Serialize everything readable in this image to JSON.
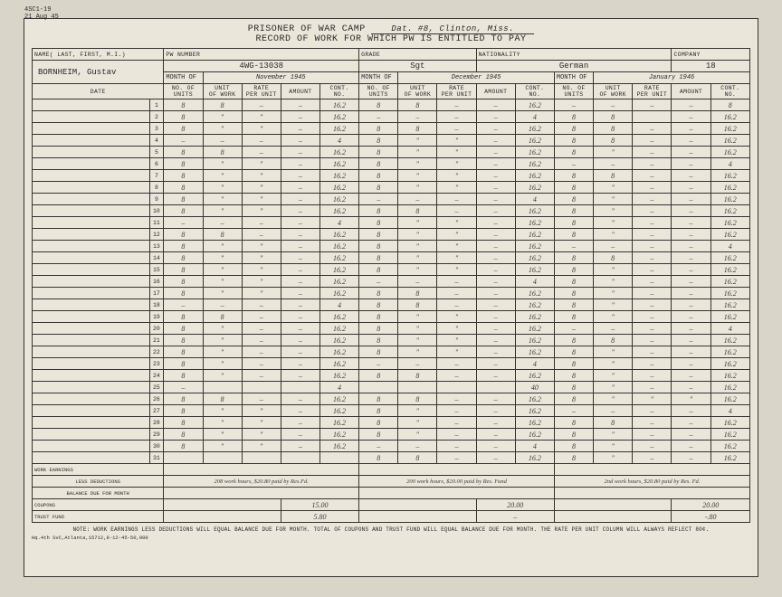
{
  "form_code": "4SC1-19",
  "form_date": "21 Aug 45",
  "title_line1": "PRISONER OF WAR CAMP",
  "camp_value": "Dat. #8, Clinton, Miss.",
  "title_line2": "RECORD OF WORK FOR WHICH PW IS ENTITLED TO PAY",
  "name_label": "NAME( LAST, FIRST, M.I.)",
  "name_value": "BORNHEIM, Gustav",
  "pw_label": "PW NUMBER",
  "pw_value": "4WG-13038",
  "grade_label": "GRADE",
  "grade_value": "Sgt",
  "nat_label": "NATIONALITY",
  "nat_value": "German",
  "co_label": "COMPANY",
  "co_value": "18",
  "date_label": "DATE",
  "month_label": "MONTH OF",
  "months": [
    "November 1945",
    "December 1945",
    "January 1946"
  ],
  "colheads": [
    "NO. OF\nUNITS",
    "UNIT\nOF WORK",
    "RATE\nPER UNIT",
    "AMOUNT",
    "CONT.\nNO."
  ],
  "rows": [
    {
      "d": 1,
      "m1": [
        "8",
        "8",
        "–",
        "–",
        "16.2"
      ],
      "m2": [
        "8",
        "8",
        "–",
        "–",
        "16.2"
      ],
      "m3": [
        "–",
        "–",
        "–",
        "–",
        "8"
      ]
    },
    {
      "d": 2,
      "m1": [
        "8",
        "\"",
        "\"",
        "–",
        "16.2"
      ],
      "m2": [
        "–",
        "–",
        "–",
        "–",
        "4"
      ],
      "m3": [
        "8",
        "8",
        "",
        "–",
        "16.2"
      ]
    },
    {
      "d": 3,
      "m1": [
        "8",
        "\"",
        "\"",
        "–",
        "16.2"
      ],
      "m2": [
        "8",
        "8",
        "–",
        "–",
        "16.2"
      ],
      "m3": [
        "8",
        "8",
        "–",
        "–",
        "16.2"
      ]
    },
    {
      "d": 4,
      "m1": [
        "–",
        "–",
        "–",
        "–",
        "4"
      ],
      "m2": [
        "8",
        "\"",
        "\"",
        "–",
        "16.2"
      ],
      "m3": [
        "8",
        "8",
        "–",
        "–",
        "16.2"
      ]
    },
    {
      "d": 5,
      "m1": [
        "8",
        "8",
        "–",
        "–",
        "16.2"
      ],
      "m2": [
        "8",
        "\"",
        "\"",
        "–",
        "16.2"
      ],
      "m3": [
        "8",
        "\"",
        "–",
        "–",
        "16.2"
      ]
    },
    {
      "d": 6,
      "m1": [
        "8",
        "\"",
        "\"",
        "–",
        "16.2"
      ],
      "m2": [
        "8",
        "\"",
        "\"",
        "–",
        "16.2"
      ],
      "m3": [
        "–",
        "–",
        "–",
        "–",
        "4"
      ]
    },
    {
      "d": 7,
      "m1": [
        "8",
        "\"",
        "\"",
        "–",
        "16.2"
      ],
      "m2": [
        "8",
        "\"",
        "\"",
        "–",
        "16.2"
      ],
      "m3": [
        "8",
        "8",
        "–",
        "–",
        "16.2"
      ]
    },
    {
      "d": 8,
      "m1": [
        "8",
        "\"",
        "\"",
        "–",
        "16.2"
      ],
      "m2": [
        "8",
        "\"",
        "\"",
        "–",
        "16.2"
      ],
      "m3": [
        "8",
        "\"",
        "–",
        "–",
        "16.2"
      ]
    },
    {
      "d": 9,
      "m1": [
        "8",
        "\"",
        "\"",
        "–",
        "16.2"
      ],
      "m2": [
        "–",
        "–",
        "–",
        "–",
        "4"
      ],
      "m3": [
        "8",
        "\"",
        "–",
        "–",
        "16.2"
      ]
    },
    {
      "d": 10,
      "m1": [
        "8",
        "\"",
        "\"",
        "–",
        "16.2"
      ],
      "m2": [
        "8",
        "8",
        "–",
        "–",
        "16.2"
      ],
      "m3": [
        "8",
        "\"",
        "–",
        "–",
        "16.2"
      ]
    },
    {
      "d": 11,
      "m1": [
        "–",
        "–",
        "–",
        "–",
        "4"
      ],
      "m2": [
        "8",
        "\"",
        "\"",
        "–",
        "16.2"
      ],
      "m3": [
        "8",
        "\"",
        "–",
        "–",
        "16.2"
      ]
    },
    {
      "d": 12,
      "m1": [
        "8",
        "8",
        "–",
        "–",
        "16.2"
      ],
      "m2": [
        "8",
        "\"",
        "\"",
        "–",
        "16.2"
      ],
      "m3": [
        "8",
        "\"",
        "–",
        "–",
        "16.2"
      ]
    },
    {
      "d": 13,
      "m1": [
        "8",
        "\"",
        "\"",
        "–",
        "16.2"
      ],
      "m2": [
        "8",
        "\"",
        "\"",
        "–",
        "16.2"
      ],
      "m3": [
        "–",
        "–",
        "–",
        "–",
        "4"
      ]
    },
    {
      "d": 14,
      "m1": [
        "8",
        "\"",
        "\"",
        "–",
        "16.2"
      ],
      "m2": [
        "8",
        "\"",
        "\"",
        "–",
        "16.2"
      ],
      "m3": [
        "8",
        "8",
        "–",
        "–",
        "16.2"
      ]
    },
    {
      "d": 15,
      "m1": [
        "8",
        "\"",
        "\"",
        "–",
        "16.2"
      ],
      "m2": [
        "8",
        "\"",
        "\"",
        "–",
        "16.2"
      ],
      "m3": [
        "8",
        "\"",
        "–",
        "–",
        "16.2"
      ]
    },
    {
      "d": 16,
      "m1": [
        "8",
        "\"",
        "\"",
        "–",
        "16.2"
      ],
      "m2": [
        "–",
        "–",
        "–",
        "–",
        "4"
      ],
      "m3": [
        "8",
        "\"",
        "–",
        "–",
        "16.2"
      ]
    },
    {
      "d": 17,
      "m1": [
        "8",
        "\"",
        "\"",
        "–",
        "16.2"
      ],
      "m2": [
        "8",
        "8",
        "–",
        "–",
        "16.2"
      ],
      "m3": [
        "8",
        "\"",
        "–",
        "–",
        "16.2"
      ]
    },
    {
      "d": 18,
      "m1": [
        "–",
        "–",
        "–",
        "–",
        "4"
      ],
      "m2": [
        "8",
        "8",
        "–",
        "–",
        "16.2"
      ],
      "m3": [
        "8",
        "\"",
        "–",
        "–",
        "16.2"
      ]
    },
    {
      "d": 19,
      "m1": [
        "8",
        "8",
        "–",
        "–",
        "16.2"
      ],
      "m2": [
        "8",
        "\"",
        "\"",
        "–",
        "16.2"
      ],
      "m3": [
        "8",
        "\"",
        "–",
        "–",
        "16.2"
      ]
    },
    {
      "d": 20,
      "m1": [
        "8",
        "\"",
        "–",
        "–",
        "16.2"
      ],
      "m2": [
        "8",
        "\"",
        "\"",
        "–",
        "16.2"
      ],
      "m3": [
        "–",
        "–",
        "–",
        "–",
        "4"
      ]
    },
    {
      "d": 21,
      "m1": [
        "8",
        "\"",
        "–",
        "–",
        "16.2"
      ],
      "m2": [
        "8",
        "\"",
        "\"",
        "–",
        "16.2"
      ],
      "m3": [
        "8",
        "8",
        "–",
        "–",
        "16.2"
      ]
    },
    {
      "d": 22,
      "m1": [
        "8",
        "\"",
        "–",
        "–",
        "16.2"
      ],
      "m2": [
        "8",
        "\"",
        "\"",
        "–",
        "16.2"
      ],
      "m3": [
        "8",
        "\"",
        "–",
        "–",
        "16.2"
      ]
    },
    {
      "d": 23,
      "m1": [
        "8",
        "\"",
        "–",
        "–",
        "16.2"
      ],
      "m2": [
        "–",
        "–",
        "–",
        "–",
        "4"
      ],
      "m3": [
        "8",
        "\"",
        "–",
        "–",
        "16.2"
      ]
    },
    {
      "d": 24,
      "m1": [
        "8",
        "\"",
        "–",
        "–",
        "16.2"
      ],
      "m2": [
        "8",
        "8",
        "–",
        "–",
        "16.2"
      ],
      "m3": [
        "8",
        "\"",
        "–",
        "–",
        "16.2"
      ]
    },
    {
      "d": 25,
      "m1": [
        "–",
        "",
        "",
        "",
        "4"
      ],
      "m2": [
        "",
        "",
        "",
        "",
        "40"
      ],
      "m3": [
        "8",
        "\"",
        "–",
        "–",
        "16.2"
      ]
    },
    {
      "d": 26,
      "m1": [
        "8",
        "8",
        "–",
        "–",
        "16.2"
      ],
      "m2": [
        "8",
        "8",
        "–",
        "–",
        "16.2"
      ],
      "m3": [
        "8",
        "\"",
        "\"",
        "\"",
        "16.2"
      ]
    },
    {
      "d": 27,
      "m1": [
        "8",
        "\"",
        "\"",
        "–",
        "16.2"
      ],
      "m2": [
        "8",
        "\"",
        "–",
        "–",
        "16.2"
      ],
      "m3": [
        "–",
        "–",
        "–",
        "–",
        "4"
      ]
    },
    {
      "d": 28,
      "m1": [
        "8",
        "\"",
        "\"",
        "–",
        "16.2"
      ],
      "m2": [
        "8",
        "\"",
        "–",
        "–",
        "16.2"
      ],
      "m3": [
        "8",
        "8",
        "–",
        "–",
        "16.2"
      ]
    },
    {
      "d": 29,
      "m1": [
        "8",
        "\"",
        "\"",
        "–",
        "16.2"
      ],
      "m2": [
        "8",
        "\"",
        "–",
        "–",
        "16.2"
      ],
      "m3": [
        "8",
        "\"",
        "–",
        "–",
        "16.2"
      ]
    },
    {
      "d": 30,
      "m1": [
        "8",
        "\"",
        "\"",
        "–",
        "16.2"
      ],
      "m2": [
        "–",
        "–",
        "–",
        "–",
        "4"
      ],
      "m3": [
        "8",
        "\"",
        "–",
        "–",
        "16.2"
      ]
    },
    {
      "d": 31,
      "m1": [
        "",
        "",
        "",
        "",
        ""
      ],
      "m2": [
        "8",
        "8",
        "–",
        "–",
        "16.2"
      ],
      "m3": [
        "8",
        "\"",
        "–",
        "–",
        "16.2"
      ]
    }
  ],
  "work_earnings_label": "WORK EARNINGS",
  "less_ded_label": "LESS DEDUCTIONS",
  "less_ded_m1": "208 work hours, $20.80 paid by Res.Fd.",
  "less_ded_m2": "200 work hours, $20.00 paid by Res. Fund",
  "less_ded_m3": "2nd work hours, $20.80 paid by Res. Fd.",
  "balance_label": "BALANCE DUE FOR MONTH",
  "coupons_label": "COUPONS",
  "coupons": [
    "15.00",
    "20.00",
    "20.00"
  ],
  "trust_label": "TRUST FUND",
  "trust": [
    "5.80",
    "–",
    "-.80"
  ],
  "note": "NOTE:  WORK EARNINGS LESS DEDUCTIONS WILL EQUAL BALANCE DUE FOR MONTH.  TOTAL OF COUPONS AND TRUST FUND WILL EQUAL BALANCE DUE FOR MONTH.  THE RATE PER UNIT COLUMN WILL ALWAYS REFLECT 80¢.",
  "printer": "Hq.4th SvC,Atlanta,15712,8-12-45-50,000"
}
